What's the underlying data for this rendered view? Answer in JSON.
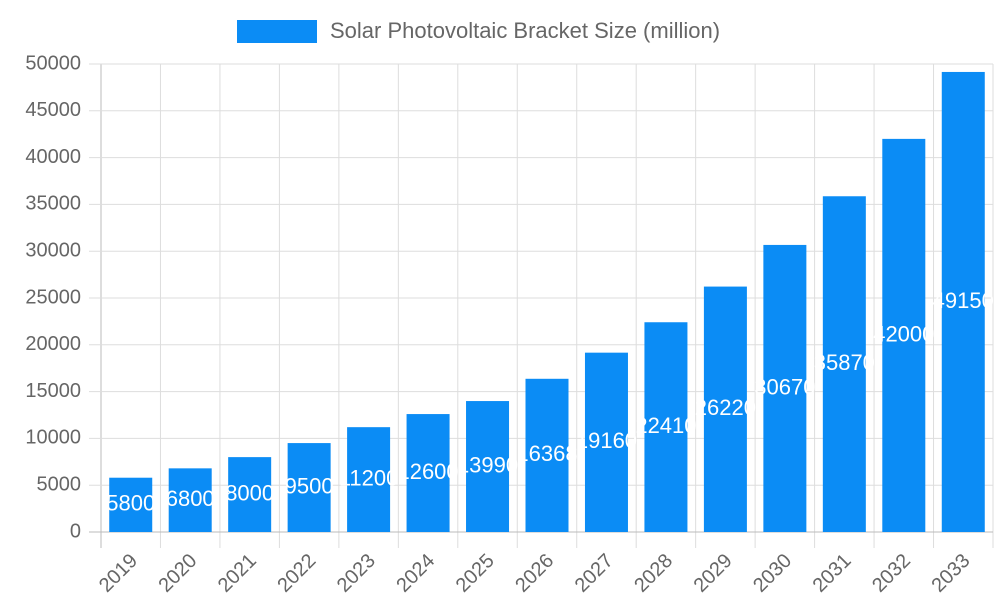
{
  "chart_data": {
    "type": "bar",
    "categories": [
      "2019",
      "2020",
      "2021",
      "2022",
      "2023",
      "2024",
      "2025",
      "2026",
      "2027",
      "2028",
      "2029",
      "2030",
      "2031",
      "2032",
      "2033"
    ],
    "series": [
      {
        "name": "Solar Photovoltaic Bracket Size (million)",
        "color": "#0b8cf5",
        "values": [
          5800,
          6800,
          8000,
          9500,
          11200,
          12600,
          13990,
          16368,
          19160,
          22410,
          26220,
          30670,
          35870,
          42000,
          49150
        ]
      }
    ],
    "ylim": [
      0,
      50000
    ],
    "yticks": [
      0,
      5000,
      10000,
      15000,
      20000,
      25000,
      30000,
      35000,
      40000,
      45000,
      50000
    ],
    "grid": true,
    "legend": "top"
  }
}
